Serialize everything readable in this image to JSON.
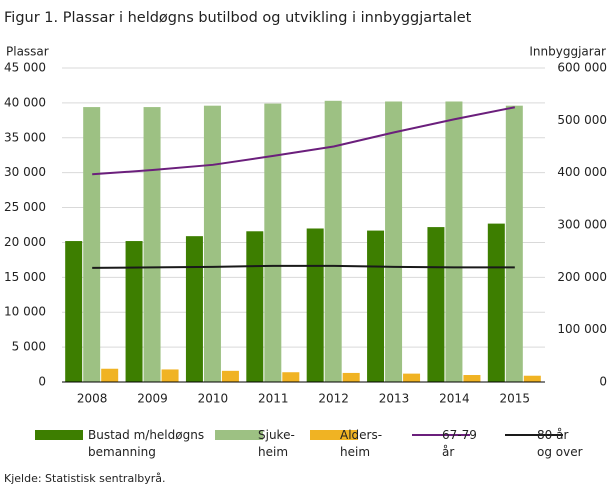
{
  "chart_data": {
    "type": "bar-line",
    "title": "Figur 1. Plassar i heldøgns butilbod og utvikling i innbyggjartalet",
    "y_label": "Plassar",
    "y2_label": "Innbyggjarar",
    "source": "Kjelde: Statistisk sentralbyrå.",
    "categories": [
      "2008",
      "2009",
      "2010",
      "2011",
      "2012",
      "2013",
      "2014",
      "2015"
    ],
    "series": [
      {
        "name": "Bustad m/heldøgns\nbemanning",
        "kind": "bar",
        "color": "#3d7e00",
        "values": [
          20200,
          20200,
          20900,
          21600,
          22000,
          21700,
          22200,
          22700
        ]
      },
      {
        "name": "Sjuke-\nheim",
        "kind": "bar",
        "color": "#9dc183",
        "values": [
          39400,
          39400,
          39600,
          39900,
          40300,
          40200,
          40200,
          39600
        ]
      },
      {
        "name": "Alders-\nheim",
        "kind": "bar",
        "color": "#f0b323",
        "values": [
          1900,
          1800,
          1600,
          1400,
          1300,
          1200,
          1000,
          900
        ]
      },
      {
        "name": "67-79\når",
        "kind": "line",
        "axis": "y2",
        "color": "#6b1f7c",
        "values": [
          397000,
          405000,
          415000,
          432000,
          450000,
          477000,
          502000,
          525000
        ]
      },
      {
        "name": "80 år\nog over",
        "kind": "line",
        "axis": "y2",
        "color": "#1a1a1a",
        "values": [
          218000,
          219000,
          220000,
          222000,
          222000,
          220000,
          219000,
          219000
        ]
      }
    ],
    "ylim": [
      0,
      45000
    ],
    "yticks": [
      0,
      {
        "value": 5000,
        "label": "5 000"
      },
      {
        "value": 10000,
        "label": "10 000"
      },
      {
        "value": 15000,
        "label": "15 000"
      },
      {
        "value": 20000,
        "label": "20 000"
      },
      {
        "value": 25000,
        "label": "25 000"
      },
      {
        "value": 30000,
        "label": "30 000"
      },
      {
        "value": 35000,
        "label": "35 000"
      },
      {
        "value": 40000,
        "label": "40 000"
      },
      {
        "value": 45000,
        "label": "45 000"
      }
    ],
    "y2lim": [
      0,
      600000
    ],
    "y2ticks": [
      0,
      {
        "value": 100000,
        "label": "100 000"
      },
      {
        "value": 200000,
        "label": "200 000"
      },
      {
        "value": 300000,
        "label": "300 000"
      },
      {
        "value": 400000,
        "label": "400 000"
      },
      {
        "value": 500000,
        "label": "500 000"
      },
      {
        "value": 600000,
        "label": "600 000"
      }
    ],
    "grid": true
  }
}
